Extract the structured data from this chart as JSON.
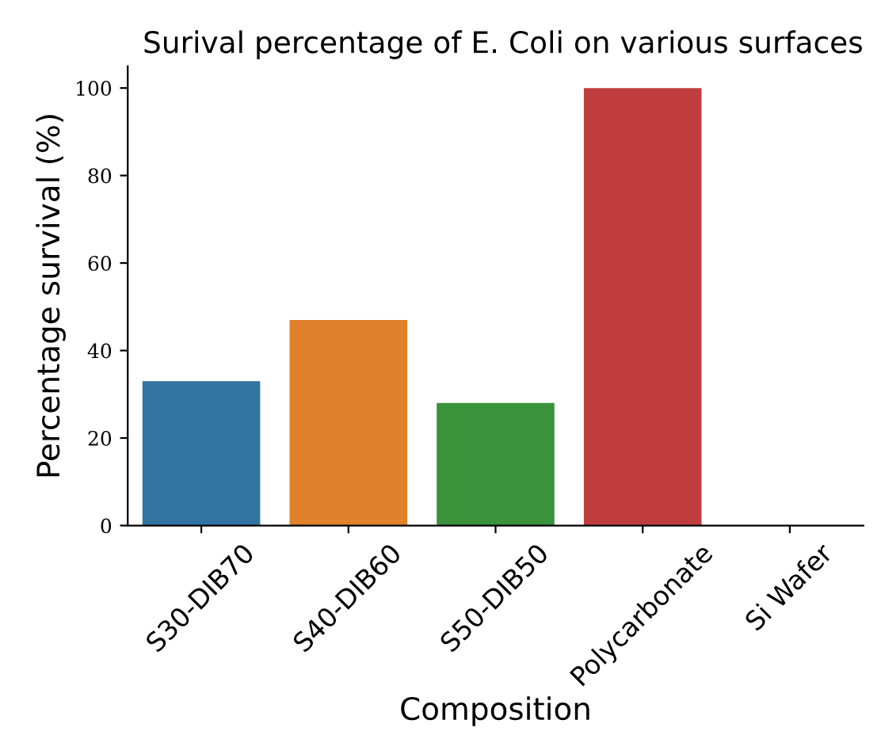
{
  "chart_data": {
    "type": "bar",
    "title": "Surival percentage of E. Coli on various surfaces",
    "xlabel": "Composition",
    "ylabel": "Percentage survival (%)",
    "categories": [
      "S30-DIB70",
      "S40-DIB60",
      "S50-DIB50",
      "Polycarbonate",
      "Si Wafer"
    ],
    "values": [
      33,
      47,
      28,
      100,
      0
    ],
    "colors": [
      "#3274a1",
      "#e1812c",
      "#3a923a",
      "#c03d3e",
      "#9372b2"
    ],
    "ylim": [
      0,
      105
    ],
    "yticks": [
      0,
      20,
      40,
      60,
      80,
      100
    ],
    "grid": false
  }
}
